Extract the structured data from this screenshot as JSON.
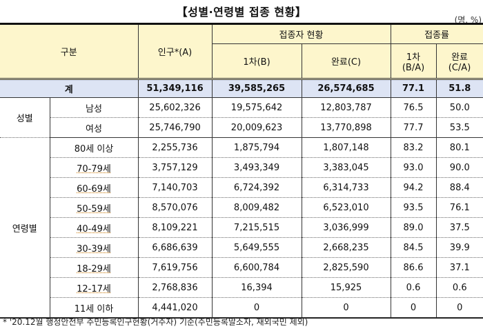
{
  "title": "【성별·연령별 접종 현황】",
  "unit": "(명, %)",
  "header": {
    "category": "구분",
    "population": "인구*(A)",
    "vaccinated_group": "접종자 현황",
    "rate_group": "접종률",
    "first_dose": "1차(B)",
    "completed": "완료(C)",
    "rate_first_l1": "1차",
    "rate_first_l2": "(B/A)",
    "rate_completed_l1": "완료",
    "rate_completed_l2": "(C/A)"
  },
  "total": {
    "label": "계",
    "population": "51,349,116",
    "first": "39,585,265",
    "completed": "26,574,685",
    "rate_first": "77.1",
    "rate_completed": "51.8"
  },
  "sex": {
    "label": "성별",
    "rows": [
      {
        "label": "남성",
        "population": "25,602,326",
        "first": "19,575,642",
        "completed": "12,803,787",
        "rate_first": "76.5",
        "rate_completed": "50.0"
      },
      {
        "label": "여성",
        "population": "25,746,790",
        "first": "20,009,623",
        "completed": "13,770,898",
        "rate_first": "77.7",
        "rate_completed": "53.5"
      }
    ]
  },
  "age": {
    "label": "연령별",
    "rows": [
      {
        "label": "80세 이상",
        "population": "2,255,736",
        "first": "1,875,794",
        "completed": "1,807,148",
        "rate_first": "83.2",
        "rate_completed": "80.1"
      },
      {
        "label": "70-79세",
        "population": "3,757,129",
        "first": "3,493,349",
        "completed": "3,383,045",
        "rate_first": "93.0",
        "rate_completed": "90.0"
      },
      {
        "label": "60-69세",
        "population": "7,140,703",
        "first": "6,724,392",
        "completed": "6,314,733",
        "rate_first": "94.2",
        "rate_completed": "88.4"
      },
      {
        "label": "50-59세",
        "population": "8,570,076",
        "first": "8,009,482",
        "completed": "6,523,010",
        "rate_first": "93.5",
        "rate_completed": "76.1"
      },
      {
        "label": "40-49세",
        "population": "8,109,221",
        "first": "7,215,515",
        "completed": "3,036,999",
        "rate_first": "89.0",
        "rate_completed": "37.5"
      },
      {
        "label": "30-39세",
        "population": "6,686,639",
        "first": "5,649,555",
        "completed": "2,668,235",
        "rate_first": "84.5",
        "rate_completed": "39.9"
      },
      {
        "label": "18-29세",
        "population": "7,619,756",
        "first": "6,600,784",
        "completed": "2,825,590",
        "rate_first": "86.6",
        "rate_completed": "37.1"
      },
      {
        "label": "12-17세",
        "population": "2,768,836",
        "first": "16,394",
        "completed": "15,925",
        "rate_first": "0.6",
        "rate_completed": "0.6"
      },
      {
        "label": "11세 이하",
        "population": "4,441,020",
        "first": "0",
        "completed": "0",
        "rate_first": "0",
        "rate_completed": "0"
      }
    ]
  },
  "footnote": "* '20.12월 행정안전부 주민등록인구현황(거주자) 기준(주민등록말소자, 재외국민 제외)"
}
